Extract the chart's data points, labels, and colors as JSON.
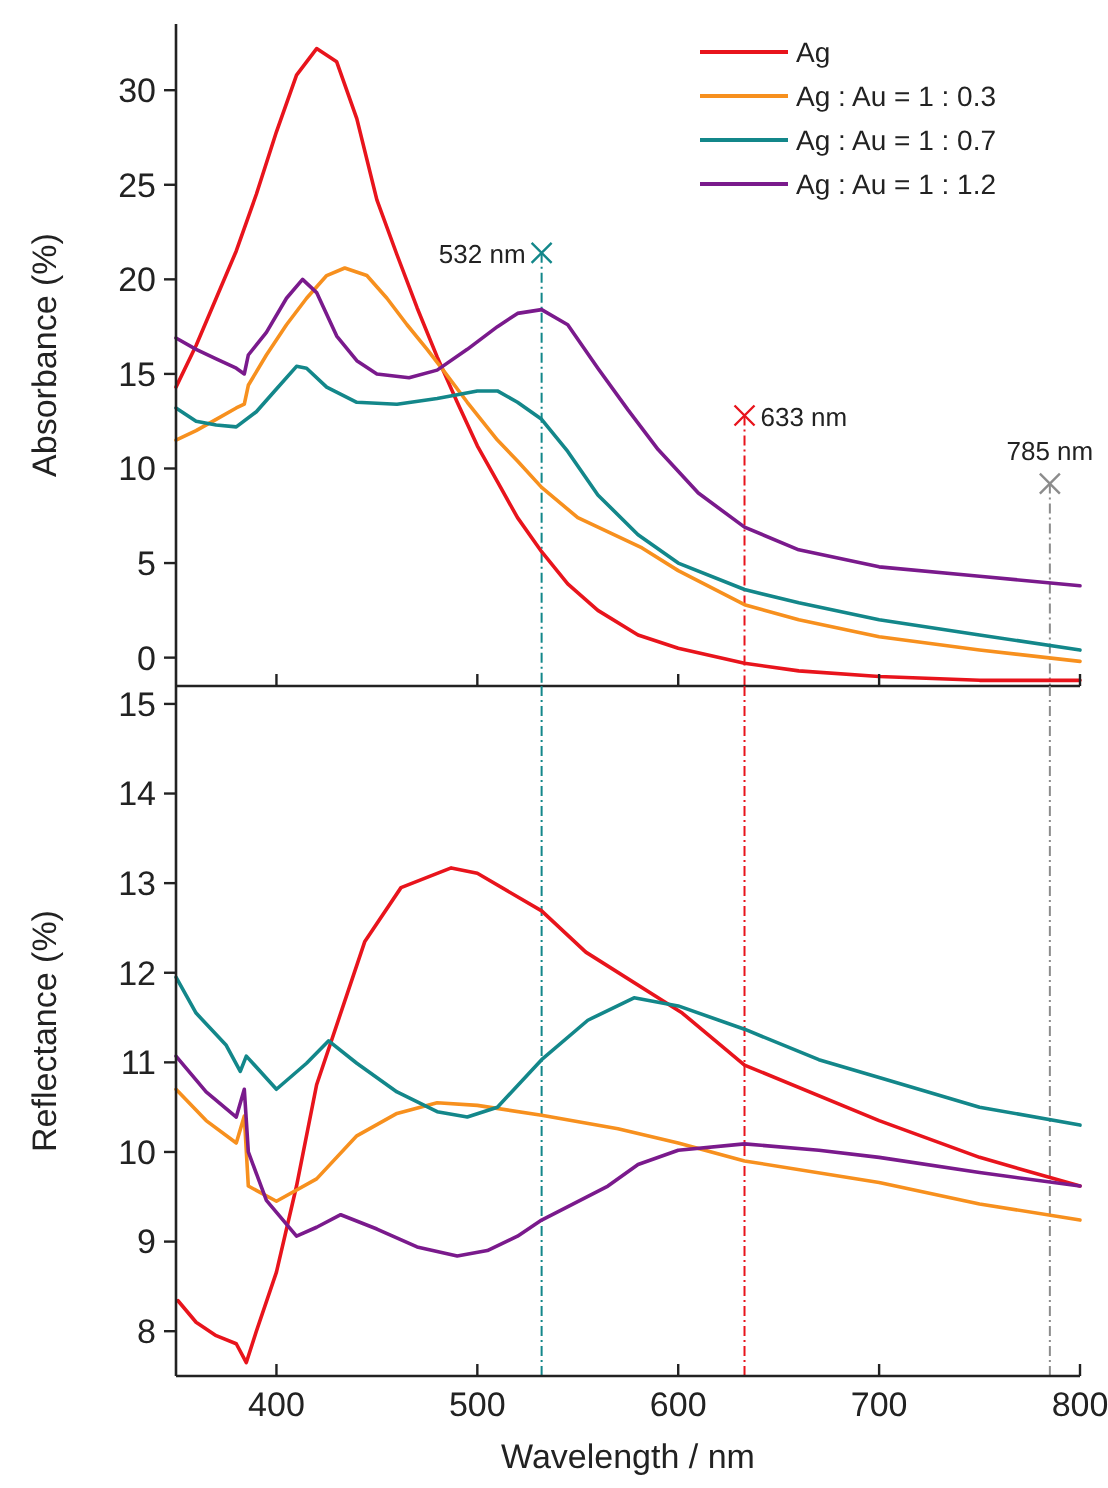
{
  "chart_data": [
    {
      "type": "line",
      "ylabel": "Absorbance (%)",
      "xlim": [
        350,
        800
      ],
      "xticks": [
        400,
        500,
        600,
        700,
        800
      ],
      "ylim": [
        -1.5,
        33.5
      ],
      "yticks": [
        0,
        5,
        10,
        15,
        20,
        25,
        30
      ],
      "tick_labels": "y",
      "legend": "top right",
      "marker": "none",
      "line_style": "solid",
      "series": [
        {
          "name": "Ag",
          "color": "#e8141c",
          "x": [
            350,
            360,
            370,
            380,
            390,
            400,
            410,
            420,
            430,
            440,
            450,
            460,
            470,
            480,
            490,
            500,
            510,
            520,
            532,
            545,
            560,
            580,
            600,
            633,
            660,
            700,
            750,
            800
          ],
          "values": [
            14.3,
            16.5,
            19,
            21.5,
            24.5,
            27.8,
            30.8,
            32.2,
            31.5,
            28.5,
            24.2,
            21.3,
            18.5,
            15.9,
            13.5,
            11.2,
            9.3,
            7.4,
            5.6,
            3.9,
            2.5,
            1.2,
            0.5,
            -0.3,
            -0.7,
            -1.0,
            -1.2,
            -1.2
          ]
        },
        {
          "name": "Ag : Au = 1 : 0.3",
          "color": "#f7901e",
          "x": [
            350,
            360,
            370,
            380,
            384,
            386,
            395,
            405,
            415,
            425,
            434,
            445,
            455,
            465,
            475,
            483,
            495,
            510,
            520,
            532,
            550,
            582,
            600,
            633,
            660,
            700,
            750,
            800
          ],
          "values": [
            11.5,
            12.0,
            12.6,
            13.2,
            13.4,
            14.4,
            16,
            17.6,
            19.0,
            20.2,
            20.6,
            20.2,
            19.0,
            17.6,
            16.3,
            15.2,
            13.5,
            11.5,
            10.4,
            9.0,
            7.4,
            5.8,
            4.6,
            2.8,
            2.0,
            1.1,
            0.4,
            -0.2
          ]
        },
        {
          "name": "Ag : Au = 1 : 0.7",
          "color": "#13878a",
          "x": [
            350,
            360,
            370,
            380,
            390,
            400,
            410,
            415,
            425,
            440,
            460,
            480,
            500,
            510,
            520,
            532,
            545,
            560,
            580,
            600,
            633,
            660,
            700,
            750,
            800
          ],
          "values": [
            13.2,
            12.5,
            12.3,
            12.2,
            13.0,
            14.2,
            15.4,
            15.3,
            14.3,
            13.5,
            13.4,
            13.7,
            14.1,
            14.1,
            13.5,
            12.6,
            10.9,
            8.6,
            6.5,
            5.0,
            3.6,
            2.9,
            2.0,
            1.2,
            0.4
          ]
        },
        {
          "name": "Ag : Au = 1 : 1.2",
          "color": "#7a1a8c",
          "x": [
            350,
            360,
            370,
            380,
            384,
            386,
            395,
            405,
            413,
            420,
            430,
            440,
            450,
            466,
            480,
            495,
            510,
            520,
            532,
            545,
            560,
            575,
            590,
            610,
            633,
            660,
            700,
            750,
            800
          ],
          "values": [
            16.9,
            16.3,
            15.8,
            15.3,
            15.0,
            16.0,
            17.2,
            19.0,
            20.0,
            19.3,
            17.0,
            15.7,
            15.0,
            14.8,
            15.2,
            16.3,
            17.5,
            18.2,
            18.4,
            17.6,
            15.3,
            13.1,
            11.0,
            8.7,
            6.9,
            5.7,
            4.8,
            4.3,
            3.8
          ]
        }
      ],
      "ref_lines": [
        {
          "axis": "x",
          "value": 532,
          "color": "#13878a",
          "line_style": "dotted"
        },
        {
          "axis": "x",
          "value": 633,
          "color": "#e8141c",
          "line_style": "dotted"
        },
        {
          "axis": "x",
          "value": 785,
          "color": "#8c8c8c",
          "line_style": "dotted"
        }
      ],
      "annotations": [
        {
          "text": "532 nm",
          "x": 532,
          "y": 21.4
        },
        {
          "text": "633 nm",
          "x": 633,
          "y": 12.8
        },
        {
          "text": "785 nm",
          "x": 785,
          "y": 9.2
        }
      ]
    },
    {
      "type": "line",
      "xlabel": "Wavelength / nm",
      "ylabel": "Reflectance (%)",
      "xlim": [
        350,
        800
      ],
      "xticks": [
        400,
        500,
        600,
        700,
        800
      ],
      "ylim": [
        7.5,
        15.2
      ],
      "yticks": [
        8,
        9,
        10,
        11,
        12,
        13,
        14,
        15
      ],
      "marker": "none",
      "line_style": "solid",
      "series": [
        {
          "color": "#e8141c",
          "x": [
            351,
            360,
            370,
            380,
            385,
            390,
            400,
            410,
            420,
            444,
            462,
            487,
            500,
            532,
            554,
            602,
            633,
            700,
            750,
            800
          ],
          "values": [
            8.34,
            8.1,
            7.95,
            7.86,
            7.65,
            8.0,
            8.66,
            9.62,
            10.75,
            12.35,
            12.95,
            13.17,
            13.11,
            12.69,
            12.23,
            11.55,
            10.97,
            10.35,
            9.94,
            9.62
          ]
        },
        {
          "color": "#f7901e",
          "x": [
            350,
            365,
            380,
            384,
            386,
            400,
            420,
            440,
            460,
            480,
            500,
            532,
            570,
            600,
            633,
            700,
            750,
            800
          ],
          "values": [
            10.7,
            10.35,
            10.1,
            10.4,
            9.62,
            9.45,
            9.7,
            10.18,
            10.43,
            10.55,
            10.52,
            10.41,
            10.26,
            10.1,
            9.9,
            9.66,
            9.42,
            9.24
          ]
        },
        {
          "color": "#13878a",
          "x": [
            350,
            360,
            375,
            382,
            385,
            400,
            415,
            426,
            440,
            460,
            480,
            495,
            510,
            532,
            555,
            578,
            600,
            633,
            670,
            700,
            750,
            800
          ],
          "values": [
            11.95,
            11.55,
            11.19,
            10.9,
            11.07,
            10.7,
            10.99,
            11.24,
            10.99,
            10.67,
            10.45,
            10.39,
            10.5,
            11.03,
            11.47,
            11.72,
            11.63,
            11.37,
            11.03,
            10.83,
            10.5,
            10.3
          ]
        },
        {
          "color": "#7a1a8c",
          "x": [
            350,
            365,
            380,
            384,
            386,
            395,
            410,
            420,
            432,
            450,
            470,
            490,
            505,
            520,
            532,
            565,
            580,
            600,
            633,
            670,
            700,
            750,
            800
          ],
          "values": [
            11.07,
            10.67,
            10.39,
            10.7,
            10.0,
            9.46,
            9.06,
            9.16,
            9.3,
            9.14,
            8.94,
            8.84,
            8.9,
            9.06,
            9.24,
            9.62,
            9.86,
            10.02,
            10.09,
            10.02,
            9.94,
            9.77,
            9.62
          ]
        }
      ],
      "ref_lines": [
        {
          "axis": "x",
          "value": 532,
          "color": "#13878a",
          "line_style": "dotted"
        },
        {
          "axis": "x",
          "value": 633,
          "color": "#e8141c",
          "line_style": "dotted"
        },
        {
          "axis": "x",
          "value": 785,
          "color": "#8c8c8c",
          "line_style": "dotted"
        }
      ]
    }
  ]
}
